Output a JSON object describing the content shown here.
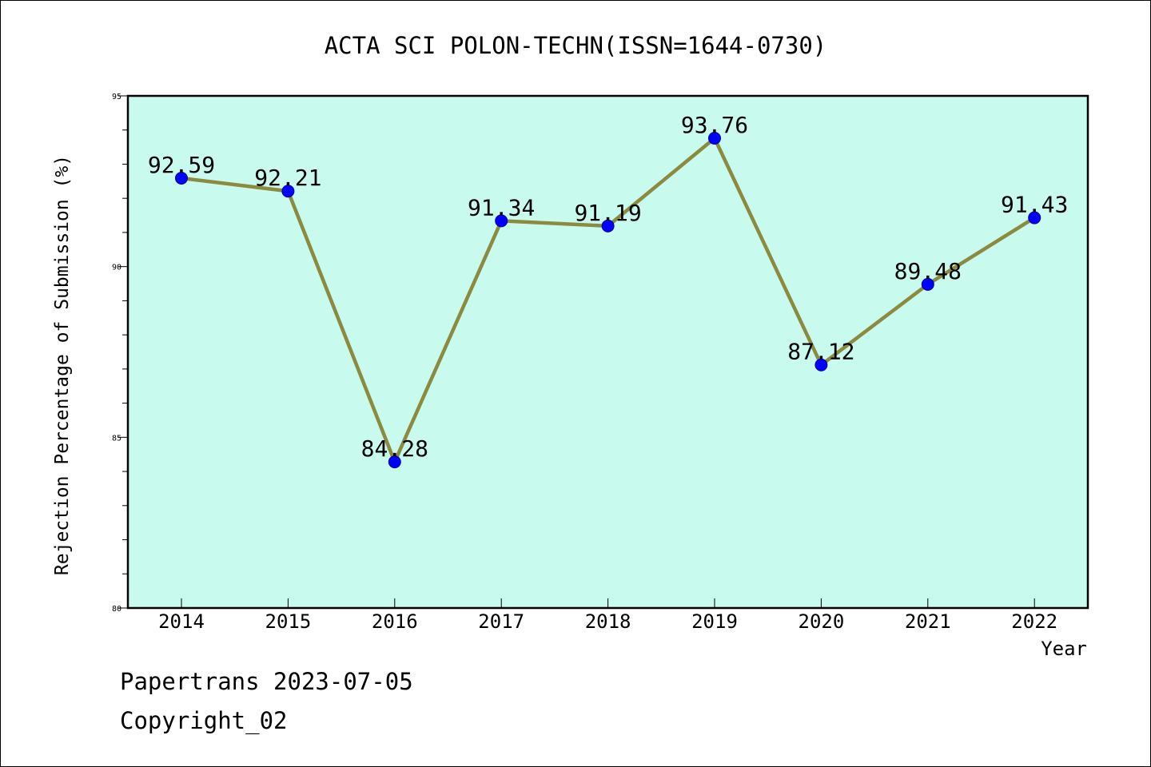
{
  "chart_data": {
    "type": "line",
    "title": "ACTA SCI POLON-TECHN(ISSN=1644-0730)",
    "xlabel": "Year",
    "ylabel": "Rejection Percentage of Submission (%)",
    "categories": [
      "2014",
      "2015",
      "2016",
      "2017",
      "2018",
      "2019",
      "2020",
      "2021",
      "2022"
    ],
    "series": [
      {
        "values": [
          92.59,
          92.21,
          84.28,
          91.34,
          91.19,
          93.76,
          87.12,
          89.48,
          91.43
        ],
        "data_labels": [
          "92.59",
          "92.21",
          "84.28",
          "91.34",
          "91.19",
          "93.76",
          "87.12",
          "89.48",
          "91.43"
        ]
      }
    ],
    "ylim": [
      80,
      95
    ],
    "yticks": [
      "80",
      "85",
      "90",
      "95"
    ],
    "grid": false,
    "colors": {
      "plot_background": "#c8fbee",
      "line": "#8b8a3e",
      "marker": "#0000ff"
    }
  },
  "footer": {
    "source": "Papertrans 2023-07-05",
    "copyright": "Copyright_02"
  }
}
